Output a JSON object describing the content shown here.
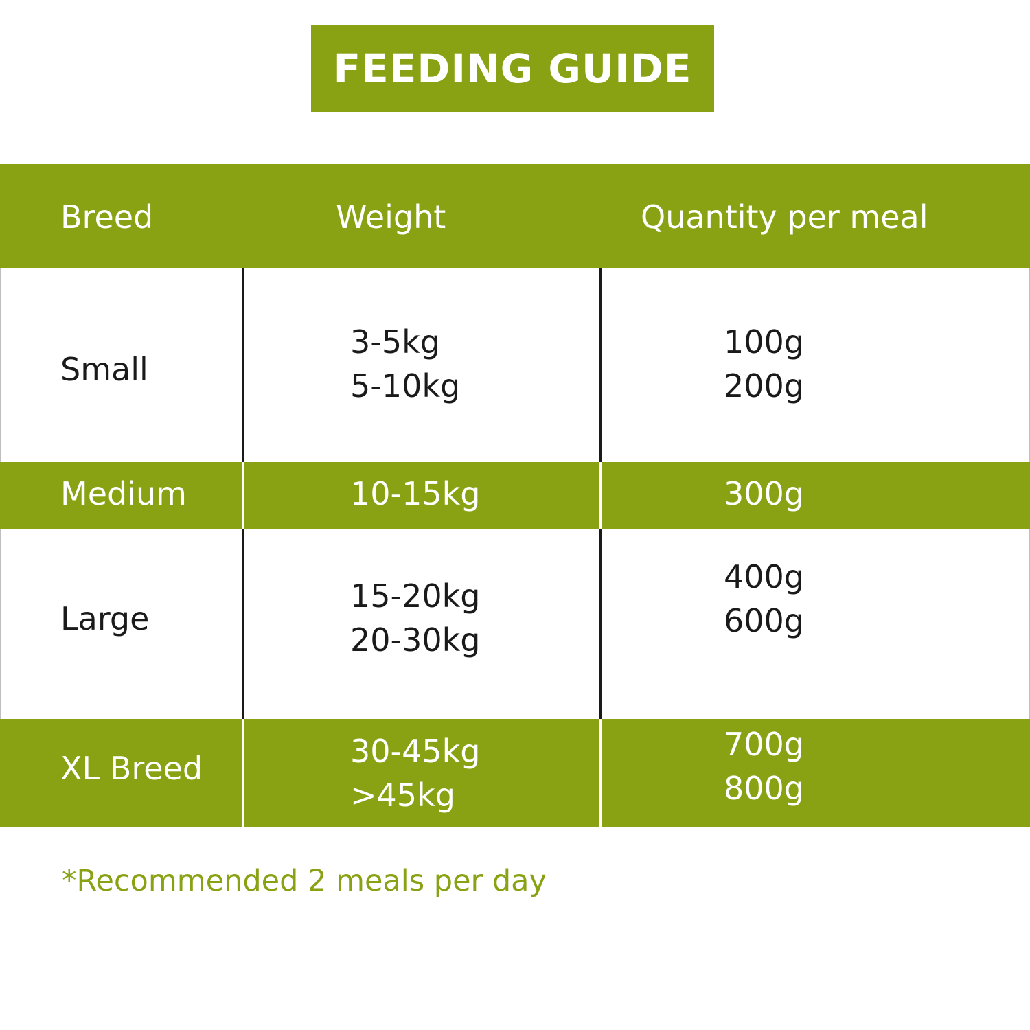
{
  "title": "FEEDING GUIDE",
  "colors": {
    "accent": "#88a213",
    "text_dark": "#1a1a1a",
    "text_light": "#ffffff",
    "background": "#ffffff"
  },
  "table": {
    "headers": [
      "Breed",
      "Weight",
      "Quantity per meal"
    ],
    "rows": [
      {
        "breed": "Small",
        "weights": [
          "3-5kg",
          "5-10kg"
        ],
        "quantities": [
          "100g",
          "200g"
        ]
      },
      {
        "breed": "Medium",
        "weights": [
          "10-15kg"
        ],
        "quantities": [
          "300g"
        ]
      },
      {
        "breed": "Large",
        "weights": [
          "15-20kg",
          "20-30kg"
        ],
        "quantities": [
          "400g",
          "600g"
        ]
      },
      {
        "breed": "XL Breed",
        "weights": [
          "30-45kg",
          ">45kg"
        ],
        "quantities": [
          "700g",
          "800g"
        ]
      }
    ]
  },
  "footnote": "*Recommended 2 meals per day"
}
